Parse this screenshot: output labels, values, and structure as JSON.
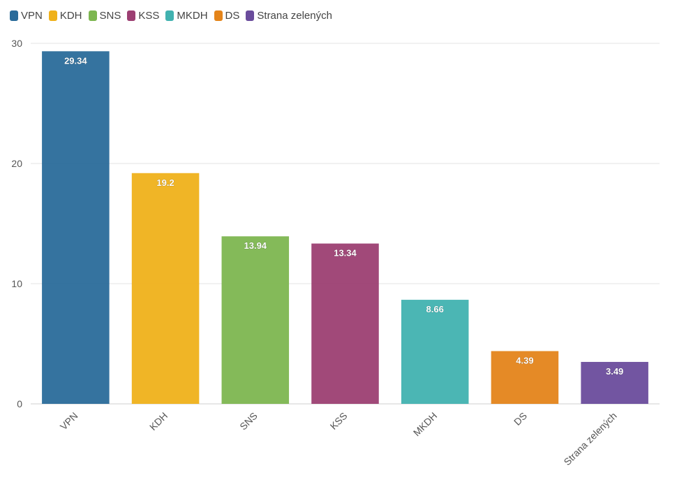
{
  "chart_data": {
    "type": "bar",
    "categories": [
      "VPN",
      "KDH",
      "SNS",
      "KSS",
      "MKDH",
      "DS",
      "Strana zelených"
    ],
    "values": [
      29.34,
      19.2,
      13.94,
      13.34,
      8.66,
      4.39,
      3.49
    ],
    "data_labels": [
      "29.34",
      "19.2",
      "13.94",
      "13.34",
      "8.66",
      "4.39",
      "3.49"
    ],
    "colors": [
      "#2a6b9a",
      "#efb11a",
      "#7db650",
      "#9c3f72",
      "#41b2b0",
      "#e4841a",
      "#6a4c9c"
    ],
    "ylim": [
      0,
      30
    ],
    "yticks": [
      "0",
      "10",
      "20",
      "30"
    ],
    "grid": true,
    "legend_position": "top-left",
    "title": "",
    "xlabel": "",
    "ylabel": ""
  }
}
